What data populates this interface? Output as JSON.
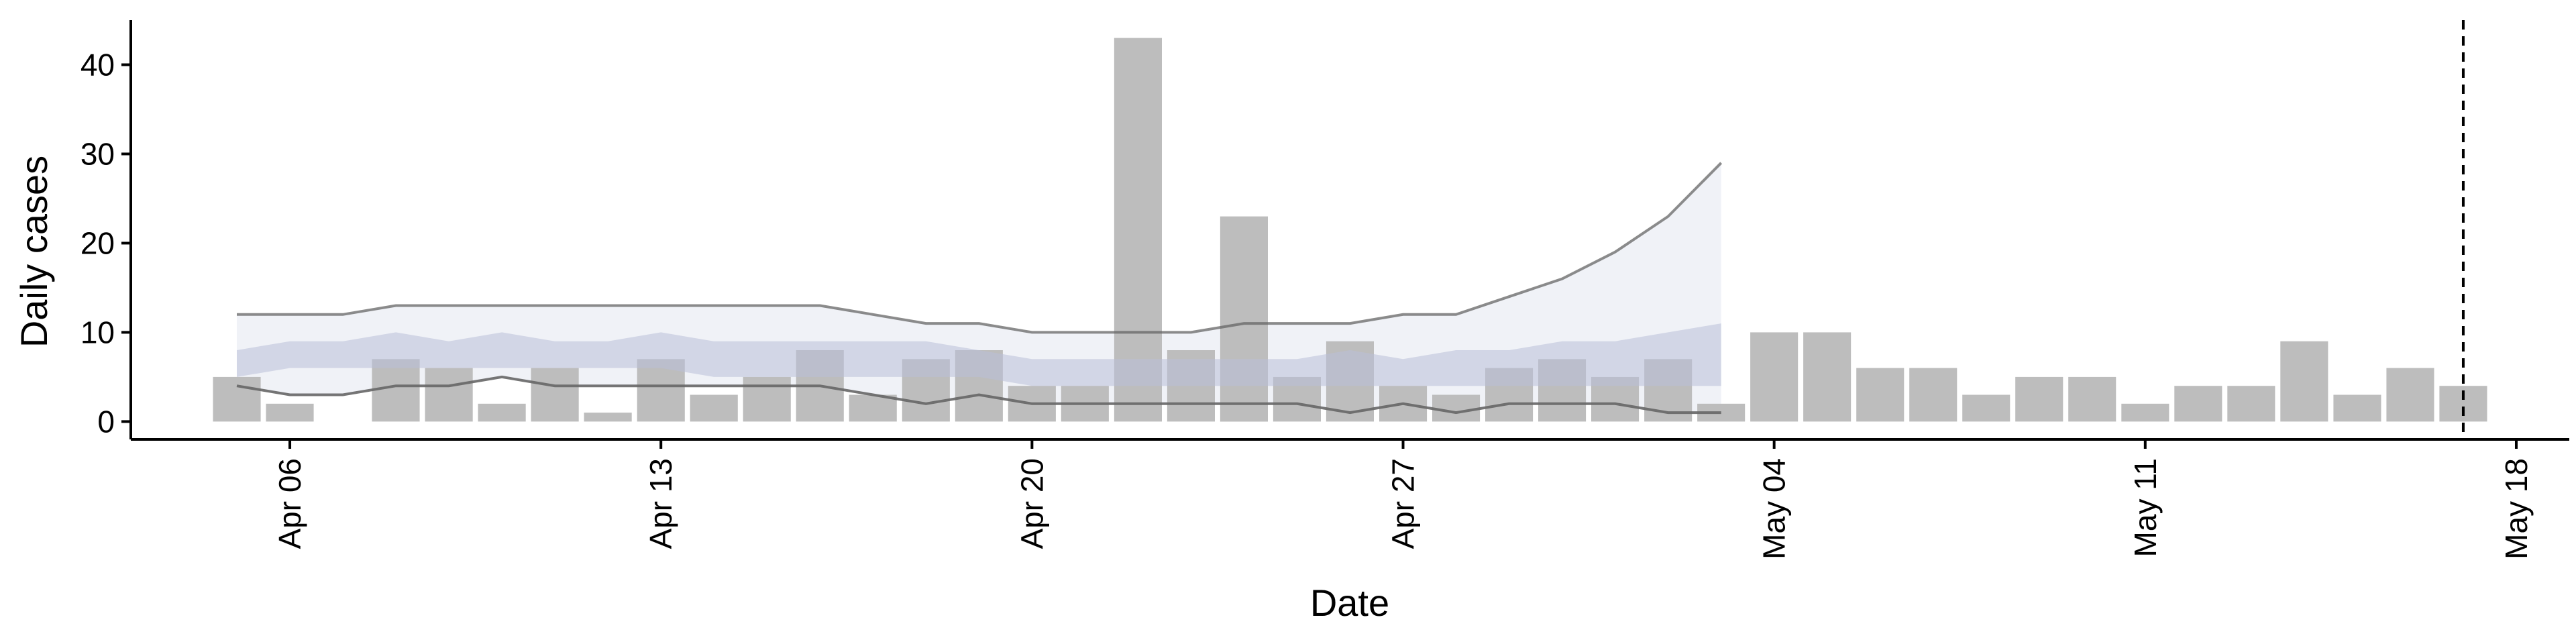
{
  "chart_data": {
    "type": "bar",
    "xlabel": "Date",
    "ylabel": "Daily cases",
    "ylim": [
      -2,
      45
    ],
    "xlim": [
      "2020-04-03",
      "2020-05-19"
    ],
    "grid": false,
    "x_ticks": [
      {
        "date": "2020-04-06",
        "label": "Apr 06"
      },
      {
        "date": "2020-04-13",
        "label": "Apr 13"
      },
      {
        "date": "2020-04-20",
        "label": "Apr 20"
      },
      {
        "date": "2020-04-27",
        "label": "Apr 27"
      },
      {
        "date": "2020-05-04",
        "label": "May 04"
      },
      {
        "date": "2020-05-11",
        "label": "May 11"
      },
      {
        "date": "2020-05-18",
        "label": "May 18"
      }
    ],
    "y_ticks": [
      0,
      10,
      20,
      30,
      40
    ],
    "reference_line": {
      "date": "2020-05-17",
      "style": "dashed",
      "color": "#000000"
    },
    "bars": {
      "color": "#bdbdbd",
      "dates": [
        "2020-04-05",
        "2020-04-06",
        "2020-04-07",
        "2020-04-08",
        "2020-04-09",
        "2020-04-10",
        "2020-04-11",
        "2020-04-12",
        "2020-04-13",
        "2020-04-14",
        "2020-04-15",
        "2020-04-16",
        "2020-04-17",
        "2020-04-18",
        "2020-04-19",
        "2020-04-20",
        "2020-04-21",
        "2020-04-22",
        "2020-04-23",
        "2020-04-24",
        "2020-04-25",
        "2020-04-26",
        "2020-04-27",
        "2020-04-28",
        "2020-04-29",
        "2020-04-30",
        "2020-05-01",
        "2020-05-02",
        "2020-05-03",
        "2020-05-04",
        "2020-05-05",
        "2020-05-06",
        "2020-05-07",
        "2020-05-08",
        "2020-05-09",
        "2020-05-10",
        "2020-05-11",
        "2020-05-12",
        "2020-05-13",
        "2020-05-14",
        "2020-05-15",
        "2020-05-16",
        "2020-05-17"
      ],
      "values": [
        5,
        2,
        0,
        7,
        6,
        2,
        6,
        1,
        7,
        3,
        5,
        8,
        3,
        7,
        8,
        4,
        4,
        43,
        8,
        23,
        5,
        9,
        4,
        3,
        6,
        7,
        5,
        7,
        2,
        10,
        10,
        6,
        6,
        3,
        5,
        5,
        2,
        4,
        4,
        9,
        3,
        6,
        4
      ]
    },
    "forecast": {
      "dates": [
        "2020-04-05",
        "2020-04-06",
        "2020-04-07",
        "2020-04-08",
        "2020-04-09",
        "2020-04-10",
        "2020-04-11",
        "2020-04-12",
        "2020-04-13",
        "2020-04-14",
        "2020-04-15",
        "2020-04-16",
        "2020-04-17",
        "2020-04-18",
        "2020-04-19",
        "2020-04-20",
        "2020-04-21",
        "2020-04-22",
        "2020-04-23",
        "2020-04-24",
        "2020-04-25",
        "2020-04-26",
        "2020-04-27",
        "2020-04-28",
        "2020-04-29",
        "2020-04-30",
        "2020-05-01",
        "2020-05-02",
        "2020-05-03"
      ],
      "upper_90": [
        12,
        12,
        12,
        13,
        13,
        13,
        13,
        13,
        13,
        13,
        13,
        13,
        12,
        11,
        11,
        10,
        10,
        10,
        10,
        11,
        11,
        11,
        12,
        12,
        14,
        16,
        19,
        23,
        29
      ],
      "lower_90": [
        4,
        3,
        3,
        4,
        4,
        5,
        4,
        4,
        4,
        4,
        4,
        4,
        3,
        2,
        3,
        2,
        2,
        2,
        2,
        2,
        2,
        1,
        2,
        1,
        2,
        2,
        2,
        1,
        1
      ],
      "upper_50": [
        8,
        9,
        9,
        10,
        9,
        10,
        9,
        9,
        10,
        9,
        9,
        9,
        9,
        9,
        8,
        7,
        7,
        7,
        7,
        7,
        7,
        8,
        7,
        8,
        8,
        9,
        9,
        10,
        11
      ],
      "lower_50": [
        5,
        6,
        6,
        6,
        6,
        6,
        6,
        6,
        6,
        5,
        5,
        5,
        5,
        5,
        5,
        4,
        4,
        4,
        4,
        4,
        4,
        4,
        4,
        4,
        4,
        4,
        4,
        4,
        4
      ],
      "outer_band_color": "#e6e9f2",
      "inner_band_color": "#b9c0d8",
      "line_color": "#666666"
    }
  }
}
